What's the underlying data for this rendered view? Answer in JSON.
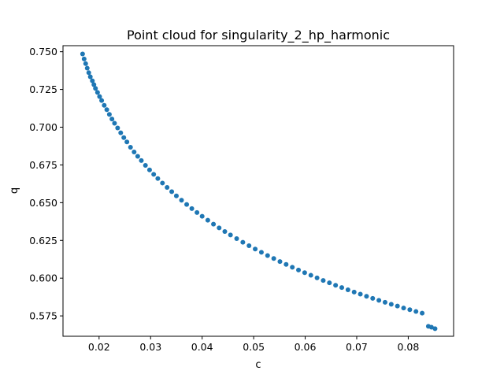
{
  "chart_data": {
    "type": "scatter",
    "title": "Point cloud for singularity_2_hp_harmonic",
    "xlabel": "c",
    "ylabel": "q",
    "xlim": [
      0.013,
      0.0888
    ],
    "ylim": [
      0.5615,
      0.754
    ],
    "grid": false,
    "marker_color": "#1f77b4",
    "xticks": [
      0.02,
      0.03,
      0.04,
      0.05,
      0.06,
      0.07,
      0.08
    ],
    "xtick_labels": [
      "0.02",
      "0.03",
      "0.04",
      "0.05",
      "0.06",
      "0.07",
      "0.08"
    ],
    "yticks": [
      0.575,
      0.6,
      0.625,
      0.65,
      0.675,
      0.7,
      0.725,
      0.75
    ],
    "ytick_labels": [
      "0.575",
      "0.600",
      "0.625",
      "0.650",
      "0.675",
      "0.700",
      "0.725",
      "0.750"
    ],
    "points": [
      {
        "x": 0.0168,
        "y": 0.7485
      },
      {
        "x": 0.0171,
        "y": 0.7452
      },
      {
        "x": 0.0174,
        "y": 0.7421
      },
      {
        "x": 0.0177,
        "y": 0.7391
      },
      {
        "x": 0.018,
        "y": 0.7361
      },
      {
        "x": 0.0183,
        "y": 0.7334
      },
      {
        "x": 0.0187,
        "y": 0.7307
      },
      {
        "x": 0.019,
        "y": 0.7282
      },
      {
        "x": 0.0193,
        "y": 0.7257
      },
      {
        "x": 0.0197,
        "y": 0.723
      },
      {
        "x": 0.0201,
        "y": 0.7203
      },
      {
        "x": 0.0205,
        "y": 0.7177
      },
      {
        "x": 0.021,
        "y": 0.7145
      },
      {
        "x": 0.0215,
        "y": 0.7116
      },
      {
        "x": 0.022,
        "y": 0.7085
      },
      {
        "x": 0.0225,
        "y": 0.7054
      },
      {
        "x": 0.023,
        "y": 0.7026
      },
      {
        "x": 0.0236,
        "y": 0.6995
      },
      {
        "x": 0.0242,
        "y": 0.6963
      },
      {
        "x": 0.0248,
        "y": 0.6931
      },
      {
        "x": 0.0254,
        "y": 0.6902
      },
      {
        "x": 0.0261,
        "y": 0.6867
      },
      {
        "x": 0.0268,
        "y": 0.6836
      },
      {
        "x": 0.0275,
        "y": 0.6807
      },
      {
        "x": 0.0282,
        "y": 0.6779
      },
      {
        "x": 0.029,
        "y": 0.6747
      },
      {
        "x": 0.0298,
        "y": 0.6717
      },
      {
        "x": 0.0306,
        "y": 0.6688
      },
      {
        "x": 0.0314,
        "y": 0.666
      },
      {
        "x": 0.0323,
        "y": 0.663
      },
      {
        "x": 0.0332,
        "y": 0.6601
      },
      {
        "x": 0.0341,
        "y": 0.6573
      },
      {
        "x": 0.035,
        "y": 0.6545
      },
      {
        "x": 0.036,
        "y": 0.6516
      },
      {
        "x": 0.037,
        "y": 0.6488
      },
      {
        "x": 0.038,
        "y": 0.6461
      },
      {
        "x": 0.039,
        "y": 0.6435
      },
      {
        "x": 0.04,
        "y": 0.641
      },
      {
        "x": 0.0411,
        "y": 0.6384
      },
      {
        "x": 0.0422,
        "y": 0.6358
      },
      {
        "x": 0.0433,
        "y": 0.6333
      },
      {
        "x": 0.0444,
        "y": 0.6309
      },
      {
        "x": 0.0455,
        "y": 0.6286
      },
      {
        "x": 0.0467,
        "y": 0.6262
      },
      {
        "x": 0.0479,
        "y": 0.6238
      },
      {
        "x": 0.0491,
        "y": 0.6215
      },
      {
        "x": 0.0503,
        "y": 0.6193
      },
      {
        "x": 0.0515,
        "y": 0.6171
      },
      {
        "x": 0.0527,
        "y": 0.615
      },
      {
        "x": 0.0539,
        "y": 0.613
      },
      {
        "x": 0.0551,
        "y": 0.611
      },
      {
        "x": 0.0563,
        "y": 0.6091
      },
      {
        "x": 0.0575,
        "y": 0.6072
      },
      {
        "x": 0.0587,
        "y": 0.6054
      },
      {
        "x": 0.0599,
        "y": 0.6036
      },
      {
        "x": 0.0611,
        "y": 0.6019
      },
      {
        "x": 0.0623,
        "y": 0.6002
      },
      {
        "x": 0.0635,
        "y": 0.5985
      },
      {
        "x": 0.0647,
        "y": 0.5969
      },
      {
        "x": 0.0659,
        "y": 0.5953
      },
      {
        "x": 0.0671,
        "y": 0.5938
      },
      {
        "x": 0.0683,
        "y": 0.5923
      },
      {
        "x": 0.0695,
        "y": 0.5908
      },
      {
        "x": 0.0707,
        "y": 0.5894
      },
      {
        "x": 0.0719,
        "y": 0.588
      },
      {
        "x": 0.0731,
        "y": 0.5866
      },
      {
        "x": 0.0743,
        "y": 0.5853
      },
      {
        "x": 0.0755,
        "y": 0.584
      },
      {
        "x": 0.0767,
        "y": 0.5827
      },
      {
        "x": 0.0779,
        "y": 0.5815
      },
      {
        "x": 0.0791,
        "y": 0.5802
      },
      {
        "x": 0.0803,
        "y": 0.5791
      },
      {
        "x": 0.0815,
        "y": 0.5779
      },
      {
        "x": 0.0827,
        "y": 0.5768
      },
      {
        "x": 0.0839,
        "y": 0.5681
      },
      {
        "x": 0.0845,
        "y": 0.5675
      },
      {
        "x": 0.0852,
        "y": 0.5665
      }
    ]
  }
}
